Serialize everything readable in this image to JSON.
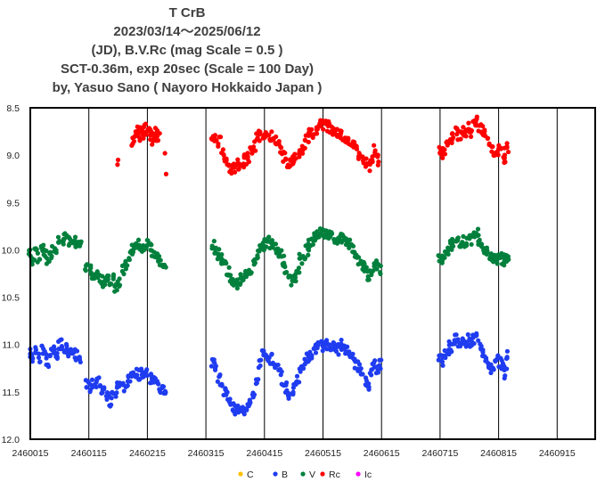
{
  "chart_data": {
    "type": "scatter",
    "title_lines": [
      "T CrB",
      "2023/03/14～2025/06/12",
      "(JD),  B.V.Rc (mag Scale = 0.5 )",
      "SCT-0.36m, exp 20sec (Scale = 100 Day)",
      "by, Yasuo Sano ( Nayoro Hokkaido Japan )"
    ],
    "x_ticks": [
      "2460015",
      "2460115",
      "2460215",
      "2460315",
      "2460415",
      "2460515",
      "2460615",
      "2460715",
      "2460815",
      "2460915"
    ],
    "y_ticks": [
      "8.5",
      "9.0",
      "9.5",
      "10.0",
      "10.5",
      "11.0",
      "11.5",
      "12.0"
    ],
    "xlim": [
      2460015,
      2460980
    ],
    "ylim": [
      12.0,
      8.5
    ],
    "y_inverted": true,
    "grid": "vertical-lines",
    "legend_position": "bottom",
    "legend": [
      {
        "name": "C",
        "color": "#ffc000"
      },
      {
        "name": "B",
        "color": "#1f3cf0"
      },
      {
        "name": "V",
        "color": "#00803c"
      },
      {
        "name": "Rc",
        "color": "#ff0000"
      },
      {
        "name": "Ic",
        "color": "#ff00ff"
      }
    ],
    "series": [
      {
        "name": "Rc",
        "color": "#ff0000",
        "segments": [
          {
            "x": [
              2460164,
              2460165
            ],
            "y": [
              9.1,
              9.05
            ]
          },
          {
            "x": [
              2460191,
              2460194,
              2460197,
              2460200,
              2460203,
              2460207,
              2460210,
              2460213,
              2460216,
              2460219,
              2460222,
              2460225,
              2460228,
              2460231,
              2460234
            ],
            "y": [
              8.85,
              8.78,
              8.75,
              8.8,
              8.73,
              8.78,
              8.72,
              8.78,
              8.72,
              8.76,
              8.8,
              8.84,
              8.8,
              8.77,
              8.8
            ]
          },
          {
            "x": [
              2460245,
              2460247
            ],
            "y": [
              8.98,
              9.2
            ]
          },
          {
            "x": [
              2460327,
              2460332,
              2460338,
              2460343,
              2460348,
              2460353,
              2460358,
              2460363,
              2460368,
              2460373,
              2460378,
              2460383,
              2460388,
              2460393,
              2460398,
              2460403,
              2460408,
              2460413,
              2460418,
              2460423,
              2460428,
              2460433,
              2460438,
              2460443,
              2460448,
              2460453,
              2460458,
              2460463,
              2460468,
              2460473,
              2460478,
              2460483,
              2460488,
              2460493,
              2460498,
              2460503,
              2460508,
              2460513,
              2460518,
              2460523,
              2460528,
              2460533,
              2460538,
              2460543,
              2460548,
              2460553,
              2460558,
              2460563,
              2460568,
              2460573,
              2460578,
              2460583,
              2460588,
              2460593,
              2460598,
              2460603,
              2460608
            ],
            "y": [
              8.78,
              8.82,
              8.86,
              8.95,
              9.05,
              9.12,
              9.15,
              9.13,
              9.1,
              9.12,
              9.08,
              9.05,
              9.02,
              8.95,
              8.9,
              8.82,
              8.8,
              8.78,
              8.77,
              8.79,
              8.8,
              8.85,
              8.88,
              8.95,
              9.02,
              9.08,
              9.1,
              9.06,
              9.02,
              9.0,
              8.95,
              8.88,
              8.82,
              8.78,
              8.78,
              8.72,
              8.7,
              8.68,
              8.69,
              8.7,
              8.72,
              8.74,
              8.75,
              8.78,
              8.8,
              8.83,
              8.85,
              8.88,
              8.9,
              8.95,
              9.0,
              9.05,
              9.08,
              9.12,
              9.05,
              8.95,
              9.05
            ]
          },
          {
            "x": [
              2460714,
              2460718,
              2460722,
              2460728,
              2460733,
              2460738,
              2460743,
              2460748,
              2460753,
              2460758,
              2460763,
              2460768,
              2460773,
              2460778,
              2460783,
              2460788,
              2460793,
              2460798,
              2460803,
              2460808,
              2460813,
              2460818,
              2460823,
              2460827,
              2460830
            ],
            "y": [
              8.97,
              8.98,
              8.95,
              8.88,
              8.82,
              8.8,
              8.75,
              8.8,
              8.76,
              8.78,
              8.7,
              8.75,
              8.68,
              8.65,
              8.73,
              8.75,
              8.78,
              8.85,
              8.92,
              8.95,
              8.97,
              8.92,
              8.98,
              9.05,
              8.93
            ]
          }
        ]
      },
      {
        "name": "V",
        "color": "#00803c",
        "segments": [
          {
            "x": [
              2460015,
              2460020,
              2460025,
              2460030,
              2460035,
              2460040,
              2460045,
              2460050,
              2460055,
              2460060,
              2460065,
              2460070,
              2460075,
              2460080,
              2460085,
              2460090,
              2460095,
              2460100
            ],
            "y": [
              10.05,
              10.1,
              10.02,
              10.08,
              10.0,
              10.05,
              10.1,
              10.05,
              9.98,
              10.0,
              9.92,
              9.9,
              9.88,
              9.9,
              9.9,
              9.92,
              9.95,
              9.92
            ]
          },
          {
            "x": [
              2460111,
              2460116,
              2460121,
              2460126,
              2460131,
              2460136,
              2460141,
              2460146,
              2460151,
              2460156,
              2460161,
              2460166
            ],
            "y": [
              10.2,
              10.22,
              10.25,
              10.3,
              10.28,
              10.32,
              10.35,
              10.3,
              10.32,
              10.28,
              10.4,
              10.35
            ]
          },
          {
            "x": [
              2460175,
              2460180,
              2460185,
              2460190,
              2460195,
              2460200,
              2460205,
              2460210,
              2460215,
              2460220,
              2460225,
              2460230,
              2460235,
              2460240,
              2460245
            ],
            "y": [
              10.2,
              10.15,
              10.05,
              10.0,
              9.95,
              9.95,
              9.98,
              9.95,
              9.95,
              9.98,
              10.02,
              10.08,
              10.12,
              10.16,
              10.18
            ]
          },
          {
            "x": [
              2460327,
              2460332,
              2460337,
              2460342,
              2460347,
              2460352,
              2460357,
              2460362,
              2460367,
              2460372,
              2460377,
              2460382,
              2460387,
              2460392,
              2460397,
              2460402,
              2460407,
              2460412,
              2460417,
              2460422,
              2460427,
              2460432,
              2460437,
              2460442,
              2460447,
              2460452,
              2460457,
              2460462,
              2460467,
              2460472,
              2460477,
              2460482,
              2460487,
              2460492,
              2460497,
              2460502,
              2460507,
              2460512,
              2460517,
              2460522,
              2460527,
              2460532,
              2460537,
              2460542,
              2460547,
              2460552,
              2460557,
              2460562,
              2460567,
              2460572,
              2460577,
              2460582,
              2460587,
              2460592,
              2460597,
              2460602,
              2460607,
              2460612
            ],
            "y": [
              9.95,
              10.0,
              10.05,
              10.1,
              10.15,
              10.22,
              10.3,
              10.32,
              10.35,
              10.33,
              10.3,
              10.28,
              10.25,
              10.2,
              10.15,
              10.05,
              9.98,
              9.95,
              9.92,
              9.92,
              9.93,
              9.95,
              10.0,
              10.06,
              10.12,
              10.2,
              10.3,
              10.32,
              10.28,
              10.2,
              10.1,
              10.05,
              10.0,
              9.95,
              9.92,
              9.88,
              9.85,
              9.82,
              9.82,
              9.83,
              9.84,
              9.86,
              9.88,
              9.9,
              9.88,
              9.9,
              9.92,
              9.95,
              10.0,
              10.05,
              10.1,
              10.15,
              10.2,
              10.28,
              10.25,
              10.18,
              10.15,
              10.2
            ]
          },
          {
            "x": [
              2460714,
              2460718,
              2460722,
              2460728,
              2460733,
              2460738,
              2460743,
              2460748,
              2460753,
              2460758,
              2460763,
              2460768,
              2460773,
              2460778,
              2460783,
              2460788,
              2460793,
              2460798,
              2460803,
              2460808,
              2460813,
              2460818,
              2460823,
              2460827,
              2460830
            ],
            "y": [
              10.08,
              10.1,
              10.05,
              10.0,
              9.95,
              9.92,
              9.88,
              9.92,
              9.9,
              9.95,
              9.88,
              9.9,
              9.85,
              9.82,
              9.9,
              9.95,
              10.0,
              10.05,
              10.08,
              10.1,
              10.1,
              10.05,
              10.1,
              10.15,
              10.05
            ]
          }
        ]
      },
      {
        "name": "B",
        "color": "#1f3cf0",
        "segments": [
          {
            "x": [
              2460015,
              2460020,
              2460025,
              2460030,
              2460035,
              2460040,
              2460045,
              2460050,
              2460055,
              2460060,
              2460065,
              2460070,
              2460075,
              2460080,
              2460085,
              2460090,
              2460095,
              2460100
            ],
            "y": [
              11.1,
              11.15,
              11.05,
              11.15,
              11.05,
              11.1,
              11.2,
              11.1,
              11.05,
              11.1,
              11.0,
              11.0,
              11.05,
              11.1,
              11.05,
              11.1,
              11.12,
              11.15
            ]
          },
          {
            "x": [
              2460111,
              2460116,
              2460121,
              2460126,
              2460131,
              2460136,
              2460141,
              2460146,
              2460151,
              2460156,
              2460161,
              2460166
            ],
            "y": [
              11.4,
              11.45,
              11.42,
              11.45,
              11.4,
              11.48,
              11.5,
              11.55,
              11.6,
              11.55,
              11.5,
              11.45
            ]
          },
          {
            "x": [
              2460175,
              2460180,
              2460185,
              2460190,
              2460195,
              2460200,
              2460205,
              2460210,
              2460215,
              2460220,
              2460225,
              2460230,
              2460235,
              2460240,
              2460245
            ],
            "y": [
              11.45,
              11.42,
              11.35,
              11.3,
              11.3,
              11.32,
              11.3,
              11.32,
              11.3,
              11.35,
              11.35,
              11.4,
              11.45,
              11.48,
              11.5
            ]
          },
          {
            "x": [
              2460327,
              2460332,
              2460337,
              2460342,
              2460347,
              2460352,
              2460357,
              2460362,
              2460367,
              2460372,
              2460377,
              2460382,
              2460387,
              2460392,
              2460397,
              2460402,
              2460407,
              2460412,
              2460417,
              2460422,
              2460427,
              2460432,
              2460437,
              2460442,
              2460447,
              2460452,
              2460457,
              2460462,
              2460467,
              2460472,
              2460477,
              2460482,
              2460487,
              2460492,
              2460497,
              2460502,
              2460507,
              2460512,
              2460517,
              2460522,
              2460527,
              2460532,
              2460537,
              2460542,
              2460547,
              2460552,
              2460557,
              2460562,
              2460567,
              2460572,
              2460577,
              2460582,
              2460587,
              2460592,
              2460597,
              2460602,
              2460607,
              2460612
            ],
            "y": [
              11.2,
              11.25,
              11.35,
              11.42,
              11.5,
              11.55,
              11.6,
              11.65,
              11.68,
              11.7,
              11.7,
              11.7,
              11.65,
              11.6,
              11.5,
              11.4,
              11.2,
              11.1,
              11.1,
              11.12,
              11.15,
              11.2,
              11.22,
              11.3,
              11.38,
              11.45,
              11.55,
              11.5,
              11.4,
              11.35,
              11.25,
              11.2,
              11.15,
              11.12,
              11.1,
              11.05,
              11.02,
              11.0,
              11.02,
              11.0,
              11.05,
              11.0,
              11.02,
              11.05,
              11.0,
              11.05,
              11.05,
              11.1,
              11.15,
              11.2,
              11.25,
              11.3,
              11.4,
              11.45,
              11.3,
              11.2,
              11.25,
              11.22
            ]
          },
          {
            "x": [
              2460714,
              2460718,
              2460722,
              2460728,
              2460733,
              2460738,
              2460743,
              2460748,
              2460753,
              2460758,
              2460763,
              2460768,
              2460773,
              2460778,
              2460783,
              2460788,
              2460793,
              2460798,
              2460803,
              2460808,
              2460813,
              2460818,
              2460823,
              2460827,
              2460830
            ],
            "y": [
              11.15,
              11.18,
              11.12,
              11.05,
              11.02,
              11.0,
              10.95,
              11.0,
              10.98,
              11.02,
              10.95,
              11.0,
              10.95,
              10.92,
              11.05,
              11.1,
              11.15,
              11.2,
              11.25,
              11.22,
              11.15,
              11.2,
              11.25,
              11.3,
              11.1
            ]
          }
        ]
      }
    ]
  }
}
